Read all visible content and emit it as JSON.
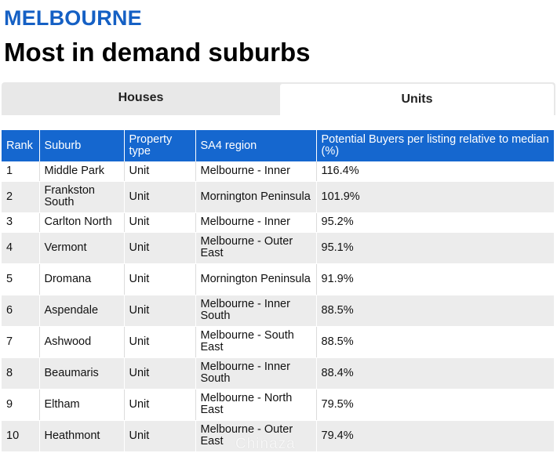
{
  "header": {
    "city": "MELBOURNE",
    "title": "Most in demand suburbs"
  },
  "tabs": [
    {
      "label": "Houses",
      "selected": false
    },
    {
      "label": "Units",
      "selected": true
    }
  ],
  "table": {
    "columns": [
      "Rank",
      "Suburb",
      "Property type",
      "SA4 region",
      "Potential Buyers per listing relative to median (%)"
    ],
    "rows": [
      {
        "rank": "1",
        "suburb": "Middle Park",
        "type": "Unit",
        "region": "Melbourne - Inner",
        "value": "116.4%"
      },
      {
        "rank": "2",
        "suburb": "Frankston South",
        "type": "Unit",
        "region": "Mornington Peninsula",
        "value": "101.9%"
      },
      {
        "rank": "3",
        "suburb": "Carlton North",
        "type": "Unit",
        "region": "Melbourne - Inner",
        "value": "95.2%"
      },
      {
        "rank": "4",
        "suburb": "Vermont",
        "type": "Unit",
        "region": "Melbourne - Outer East",
        "value": "95.1%"
      },
      {
        "rank": "5",
        "suburb": "Dromana",
        "type": "Unit",
        "region": "Mornington Peninsula",
        "value": "91.9%"
      },
      {
        "rank": "6",
        "suburb": "Aspendale",
        "type": "Unit",
        "region": "Melbourne - Inner South",
        "value": "88.5%"
      },
      {
        "rank": "7",
        "suburb": "Ashwood",
        "type": "Unit",
        "region": "Melbourne - South East",
        "value": "88.5%"
      },
      {
        "rank": "8",
        "suburb": "Beaumaris",
        "type": "Unit",
        "region": "Melbourne - Inner South",
        "value": "88.4%"
      },
      {
        "rank": "9",
        "suburb": "Eltham",
        "type": "Unit",
        "region": "Melbourne - North East",
        "value": "79.5%"
      },
      {
        "rank": "10",
        "suburb": "Heathmont",
        "type": "Unit",
        "region": "Melbourne - Outer East",
        "value": "79.4%"
      }
    ]
  },
  "watermark": "Chinaza",
  "colors": {
    "accent": "#1560c4",
    "header_bg": "#1567cf",
    "stripe": "#ececec",
    "tab_bg": "#e8e8e8"
  }
}
